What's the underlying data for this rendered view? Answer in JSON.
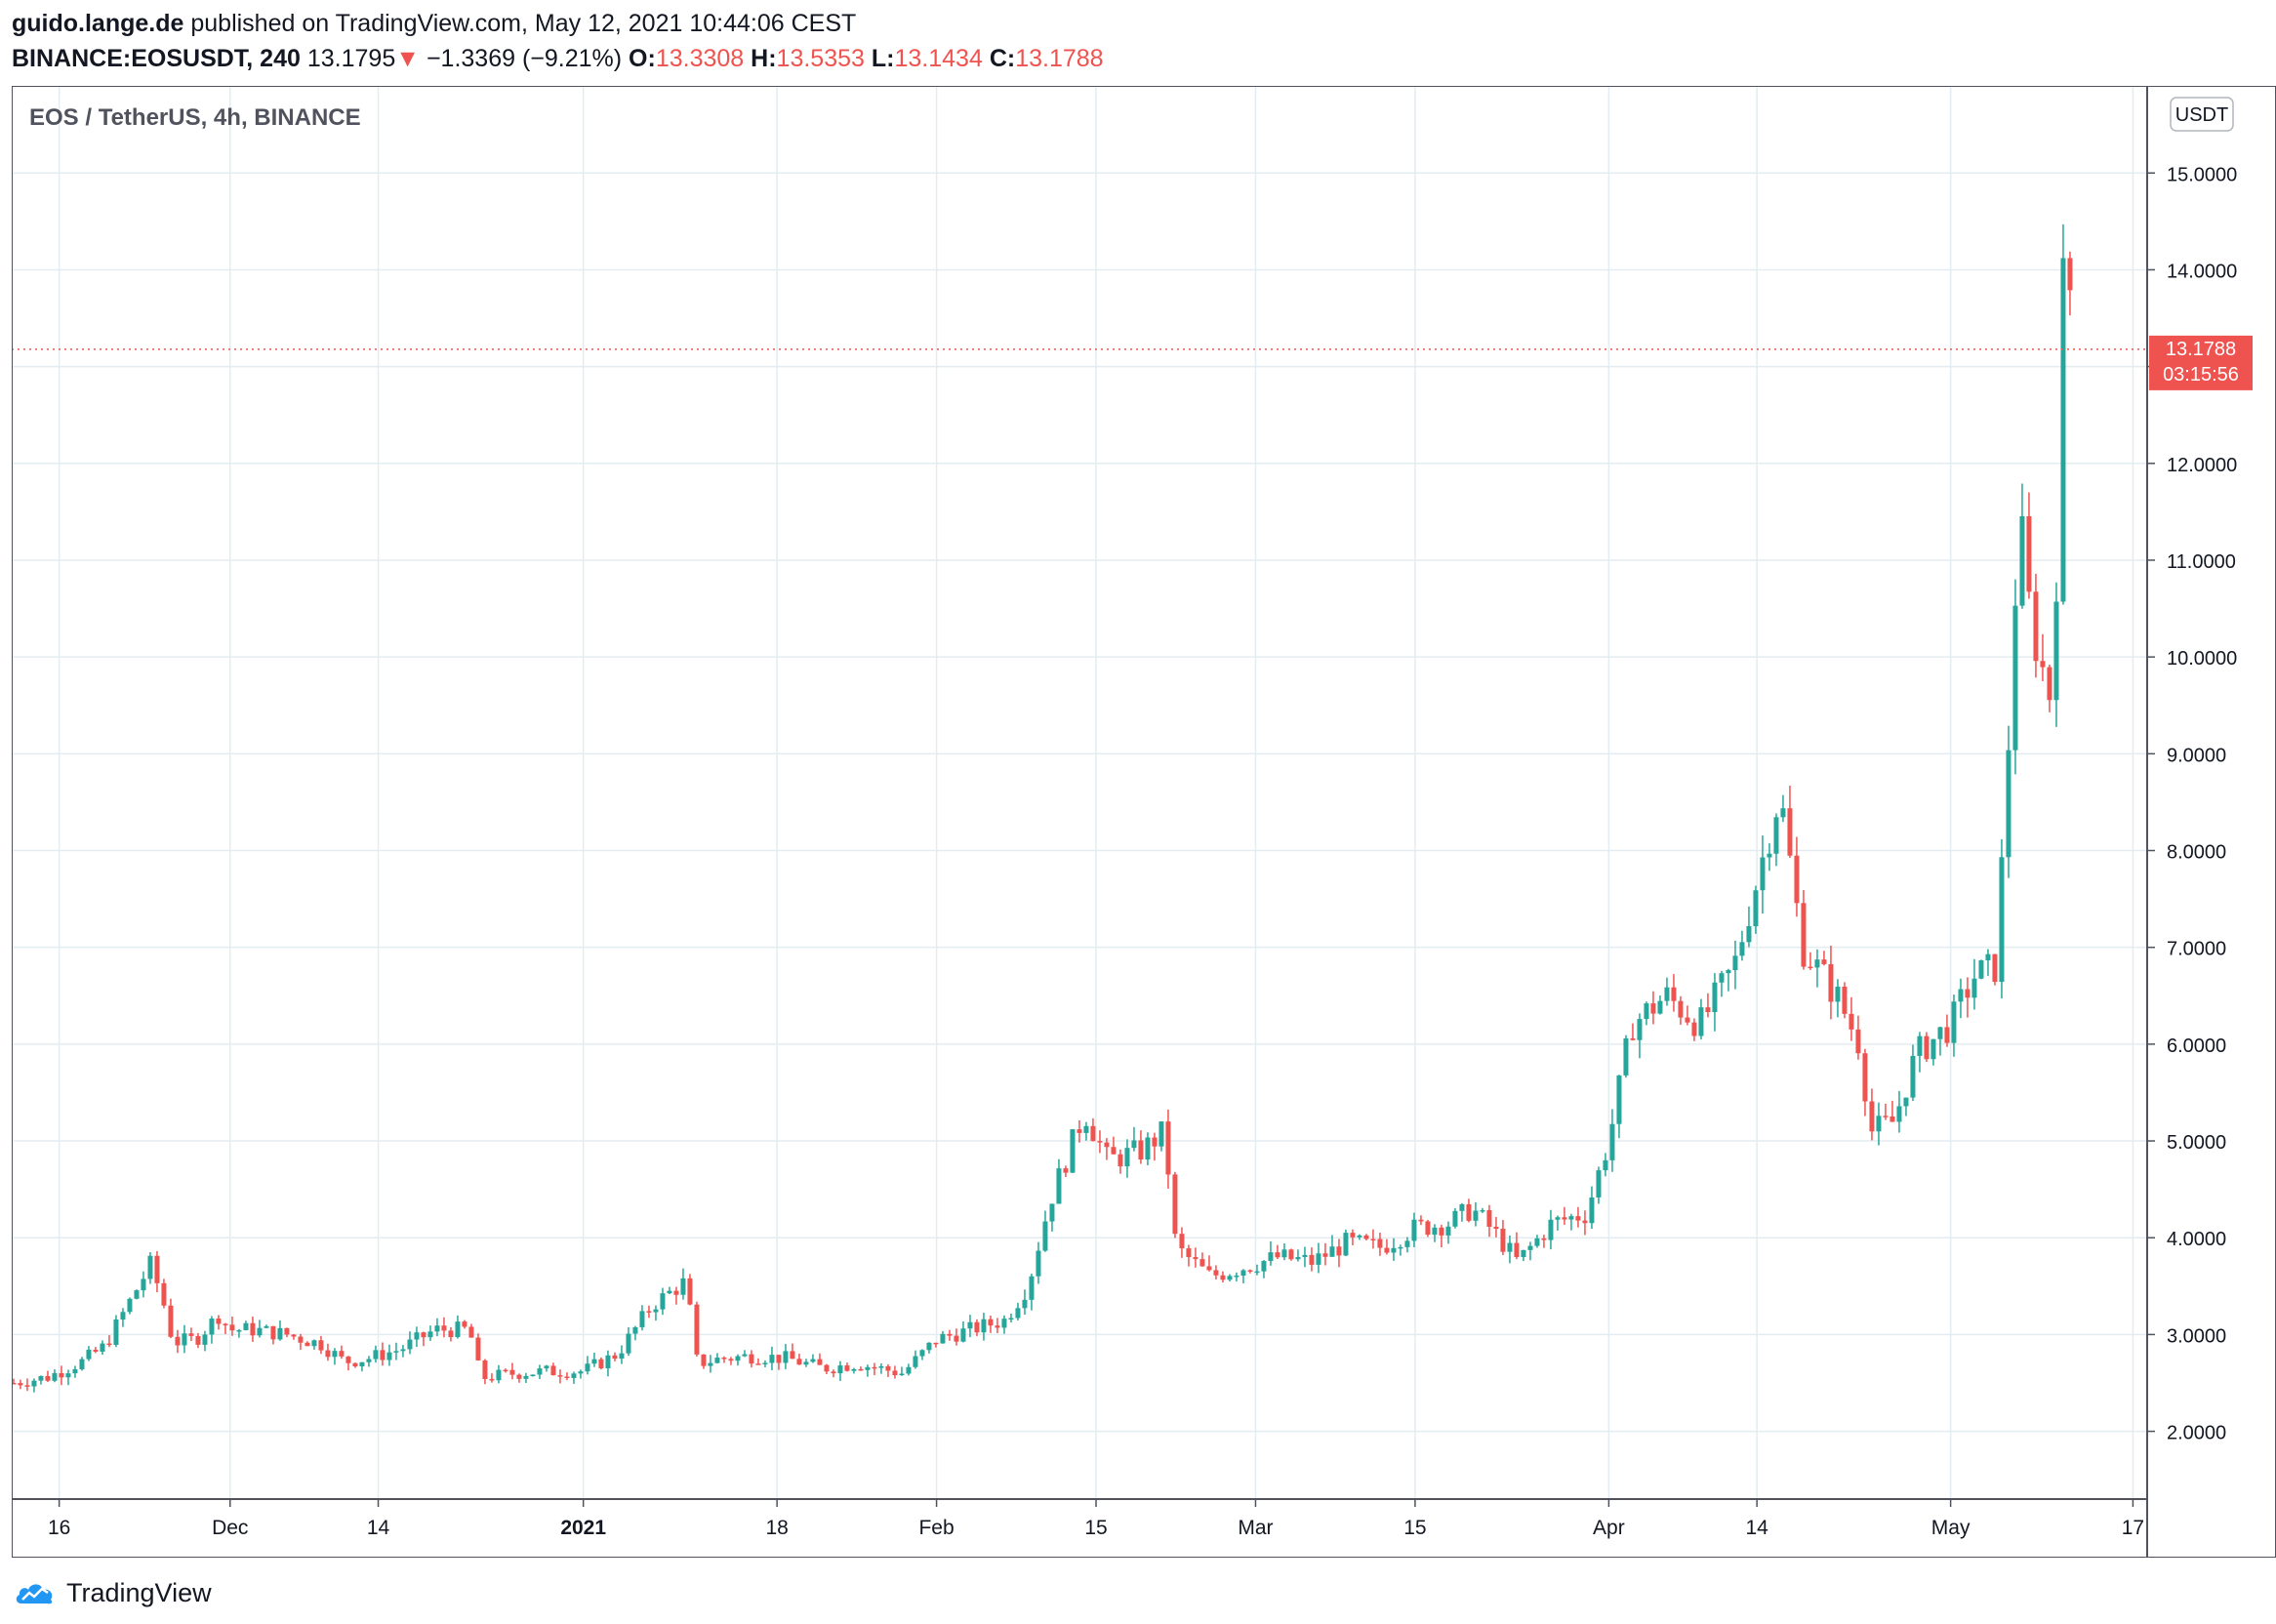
{
  "header": {
    "publisher": "guido.lange.de",
    "published_text": "published on TradingView.com, May 12, 2021 10:44:06 CEST",
    "symbol_interval": "BINANCE:EOSUSDT, 240",
    "last": "13.1795",
    "arrow": "▼",
    "change": "−1.3369 (−9.21%)",
    "o_label": "O:",
    "o_value": "13.3308",
    "h_label": "H:",
    "h_value": "13.5353",
    "l_label": "L:",
    "l_value": "13.1434",
    "c_label": "C:",
    "c_value": "13.1788"
  },
  "chart": {
    "legend_title": "EOS / TetherUS, 4h, BINANCE",
    "currency": "USDT",
    "price_label": "13.1788",
    "countdown_label": "03:15:56"
  },
  "footer": {
    "brand": "TradingView"
  },
  "colors": {
    "up": "#26a69a",
    "down": "#ef5350",
    "grid": "#e3ecf0",
    "axis": "#787b86",
    "price_tag": "#ef5350"
  },
  "icons": {
    "brand_logo": "tradingview-cloud-icon"
  },
  "chart_data": {
    "type": "candlestick",
    "title": "EOS / TetherUS, 4h, BINANCE",
    "x_axis": {
      "ticks": [
        {
          "label": "16",
          "date": "2020-11-16",
          "bold": false
        },
        {
          "label": "Dec",
          "date": "2020-12-01",
          "bold": false
        },
        {
          "label": "14",
          "date": "2020-12-14",
          "bold": false
        },
        {
          "label": "2021",
          "date": "2021-01-01",
          "bold": true
        },
        {
          "label": "18",
          "date": "2021-01-18",
          "bold": false
        },
        {
          "label": "Feb",
          "date": "2021-02-01",
          "bold": false
        },
        {
          "label": "15",
          "date": "2021-02-15",
          "bold": false
        },
        {
          "label": "Mar",
          "date": "2021-03-01",
          "bold": false
        },
        {
          "label": "15",
          "date": "2021-03-15",
          "bold": false
        },
        {
          "label": "Apr",
          "date": "2021-04-01",
          "bold": false
        },
        {
          "label": "14",
          "date": "2021-04-14",
          "bold": false
        },
        {
          "label": "May",
          "date": "2021-05-01",
          "bold": false
        },
        {
          "label": "17",
          "date": "2021-05-17",
          "bold": false
        }
      ]
    },
    "y_axis": {
      "ticks": [
        "2.0000",
        "3.0000",
        "4.0000",
        "5.0000",
        "6.0000",
        "7.0000",
        "8.0000",
        "9.0000",
        "10.0000",
        "11.0000",
        "12.0000",
        "13.0000",
        "14.0000",
        "15.0000"
      ],
      "range": [
        1.3,
        15.9
      ]
    },
    "last_price": 13.1788,
    "series": [
      {
        "price_path": [
          [
            "2020-11-12",
            2.5
          ],
          [
            "2020-11-15",
            2.56
          ],
          [
            "2020-11-18",
            2.72
          ],
          [
            "2020-11-20",
            2.88
          ],
          [
            "2020-11-22",
            3.3
          ],
          [
            "2020-11-24",
            3.72
          ],
          [
            "2020-11-25",
            3.4
          ],
          [
            "2020-11-26",
            2.92
          ],
          [
            "2020-11-28",
            2.95
          ],
          [
            "2020-11-30",
            3.2
          ],
          [
            "2020-12-01",
            3.05
          ],
          [
            "2020-12-03",
            3.05
          ],
          [
            "2020-12-06",
            3.0
          ],
          [
            "2020-12-09",
            2.9
          ],
          [
            "2020-12-11",
            2.72
          ],
          [
            "2020-12-13",
            2.75
          ],
          [
            "2020-12-16",
            2.85
          ],
          [
            "2020-12-19",
            3.05
          ],
          [
            "2020-12-22",
            3.05
          ],
          [
            "2020-12-23",
            2.55
          ],
          [
            "2020-12-26",
            2.6
          ],
          [
            "2020-12-29",
            2.62
          ],
          [
            "2021-01-01",
            2.62
          ],
          [
            "2021-01-04",
            2.8
          ],
          [
            "2021-01-07",
            3.3
          ],
          [
            "2021-01-10",
            3.55
          ],
          [
            "2021-01-11",
            2.7
          ],
          [
            "2021-01-13",
            2.75
          ],
          [
            "2021-01-16",
            2.78
          ],
          [
            "2021-01-19",
            2.75
          ],
          [
            "2021-01-22",
            2.65
          ],
          [
            "2021-01-25",
            2.7
          ],
          [
            "2021-01-29",
            2.6
          ],
          [
            "2021-02-01",
            2.95
          ],
          [
            "2021-02-04",
            3.05
          ],
          [
            "2021-02-07",
            3.15
          ],
          [
            "2021-02-09",
            3.5
          ],
          [
            "2021-02-11",
            4.4
          ],
          [
            "2021-02-14",
            5.3
          ],
          [
            "2021-02-16",
            4.8
          ],
          [
            "2021-02-19",
            4.9
          ],
          [
            "2021-02-21",
            5.1
          ],
          [
            "2021-02-22",
            3.9
          ],
          [
            "2021-02-25",
            3.6
          ],
          [
            "2021-02-28",
            3.7
          ],
          [
            "2021-03-03",
            3.8
          ],
          [
            "2021-03-06",
            3.75
          ],
          [
            "2021-03-09",
            3.95
          ],
          [
            "2021-03-12",
            3.9
          ],
          [
            "2021-03-15",
            4.1
          ],
          [
            "2021-03-18",
            4.15
          ],
          [
            "2021-03-20",
            4.3
          ],
          [
            "2021-03-22",
            4.05
          ],
          [
            "2021-03-24",
            3.75
          ],
          [
            "2021-03-27",
            4.15
          ],
          [
            "2021-03-30",
            4.25
          ],
          [
            "2021-04-01",
            5.0
          ],
          [
            "2021-04-03",
            6.2
          ],
          [
            "2021-04-06",
            6.5
          ],
          [
            "2021-04-09",
            6.2
          ],
          [
            "2021-04-12",
            6.8
          ],
          [
            "2021-04-14",
            7.7
          ],
          [
            "2021-04-16",
            8.6
          ],
          [
            "2021-04-18",
            7.0
          ],
          [
            "2021-04-21",
            6.5
          ],
          [
            "2021-04-23",
            6.0
          ],
          [
            "2021-04-24",
            5.1
          ],
          [
            "2021-04-26",
            5.2
          ],
          [
            "2021-04-28",
            5.9
          ],
          [
            "2021-05-01",
            6.2
          ],
          [
            "2021-05-03",
            6.7
          ],
          [
            "2021-05-05",
            6.8
          ],
          [
            "2021-05-06",
            8.9
          ],
          [
            "2021-05-07",
            11.5
          ],
          [
            "2021-05-08",
            10.4
          ],
          [
            "2021-05-09",
            9.9
          ],
          [
            "2021-05-10",
            9.5
          ],
          [
            "2021-05-11",
            14.4
          ],
          [
            "2021-05-12",
            13.18
          ]
        ]
      }
    ]
  }
}
